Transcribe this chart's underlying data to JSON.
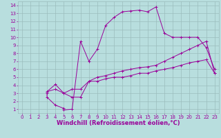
{
  "background_color": "#b8dede",
  "grid_color": "#9bbcbc",
  "line_color": "#990099",
  "xlabel": "Windchill (Refroidissement éolien,°C)",
  "xlim": [
    -0.5,
    23.5
  ],
  "ylim": [
    0.5,
    14.5
  ],
  "xticks": [
    0,
    1,
    2,
    3,
    4,
    5,
    6,
    7,
    8,
    9,
    10,
    11,
    12,
    13,
    14,
    15,
    16,
    17,
    18,
    19,
    20,
    21,
    22,
    23
  ],
  "yticks": [
    1,
    2,
    3,
    4,
    5,
    6,
    7,
    8,
    9,
    10,
    11,
    12,
    13,
    14
  ],
  "line1_x": [
    3,
    3,
    4,
    5,
    5,
    6,
    7,
    8,
    9,
    10,
    11,
    12,
    13,
    14,
    15,
    16,
    17,
    18,
    19,
    20,
    21,
    22,
    23
  ],
  "line1_y": [
    3.0,
    2.5,
    1.5,
    1.1,
    0.9,
    1.0,
    9.5,
    7.0,
    8.5,
    11.5,
    12.5,
    13.2,
    13.3,
    13.4,
    13.2,
    13.8,
    10.5,
    10.0,
    10.0,
    10.0,
    10.0,
    8.7,
    6.0
  ],
  "line2_x": [
    3,
    4,
    5,
    6,
    7,
    8,
    9,
    10,
    11,
    12,
    13,
    14,
    15,
    16,
    17,
    18,
    19,
    20,
    21,
    22,
    23
  ],
  "line2_y": [
    3.2,
    4.1,
    3.0,
    2.5,
    2.5,
    4.5,
    5.0,
    5.2,
    5.5,
    5.8,
    6.0,
    6.2,
    6.3,
    6.5,
    7.0,
    7.5,
    8.0,
    8.5,
    9.0,
    9.5,
    5.5
  ],
  "line3_x": [
    3,
    4,
    5,
    6,
    7,
    8,
    9,
    10,
    11,
    12,
    13,
    14,
    15,
    16,
    17,
    18,
    19,
    20,
    21,
    22,
    23
  ],
  "line3_y": [
    3.2,
    3.5,
    3.0,
    3.5,
    3.5,
    4.5,
    4.5,
    4.8,
    5.0,
    5.0,
    5.2,
    5.5,
    5.5,
    5.8,
    6.0,
    6.2,
    6.5,
    6.8,
    7.0,
    7.2,
    5.5
  ],
  "tick_fontsize": 5.0,
  "label_fontsize": 6.0
}
